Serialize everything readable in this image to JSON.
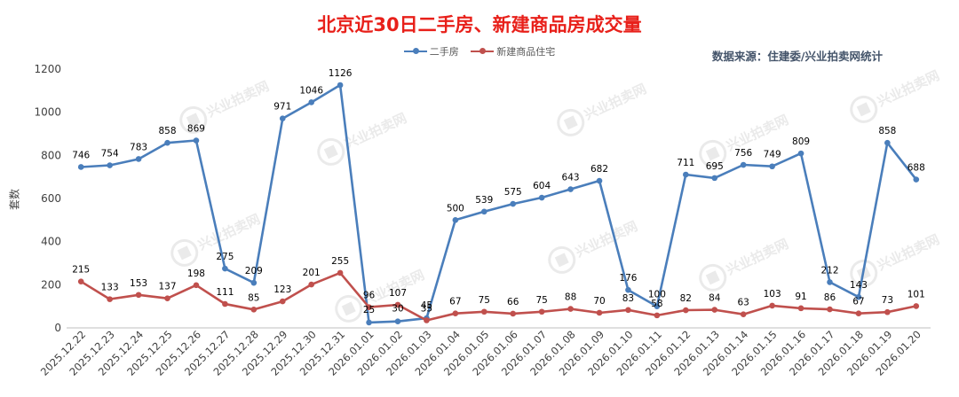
{
  "title": "北京近30日二手房、新建商品房成交量",
  "source": "数据来源：住建委/兴业拍卖网统计",
  "watermark_text": "兴业拍卖网",
  "chart_data": {
    "type": "line",
    "title": "北京近30日二手房、新建商品房成交量",
    "xlabel": "",
    "ylabel": "套数",
    "ylim": [
      0,
      1200
    ],
    "yticks": [
      0,
      200,
      400,
      600,
      800,
      1000,
      1200
    ],
    "grid": false,
    "legend_position": "top",
    "categories": [
      "2025.12.22",
      "2025.12.23",
      "2025.12.24",
      "2025.12.25",
      "2025.12.26",
      "2025.12.27",
      "2025.12.28",
      "2025.12.29",
      "2025.12.30",
      "2025.12.31",
      "2026.01.01",
      "2026.01.02",
      "2026.01.03",
      "2026.01.04",
      "2026.01.05",
      "2026.01.06",
      "2026.01.07",
      "2026.01.08",
      "2026.01.09",
      "2026.01.10",
      "2026.01.11",
      "2026.01.12",
      "2026.01.13",
      "2026.01.14",
      "2026.01.15",
      "2026.01.16",
      "2026.01.17",
      "2026.01.18",
      "2026.01.19",
      "2026.01.20"
    ],
    "series": [
      {
        "name": "二手房",
        "color": "#4a7ebb",
        "values": [
          746,
          754,
          783,
          858,
          869,
          275,
          209,
          971,
          1046,
          1126,
          25,
          30,
          45,
          500,
          539,
          575,
          604,
          643,
          682,
          176,
          100,
          711,
          695,
          756,
          749,
          809,
          212,
          143,
          858,
          688
        ]
      },
      {
        "name": "新建商品住宅",
        "color": "#c0504d",
        "values": [
          215,
          133,
          153,
          137,
          198,
          111,
          85,
          123,
          201,
          255,
          96,
          107,
          35,
          67,
          75,
          66,
          75,
          88,
          70,
          83,
          58,
          82,
          84,
          63,
          103,
          91,
          86,
          67,
          73,
          101
        ]
      }
    ]
  }
}
